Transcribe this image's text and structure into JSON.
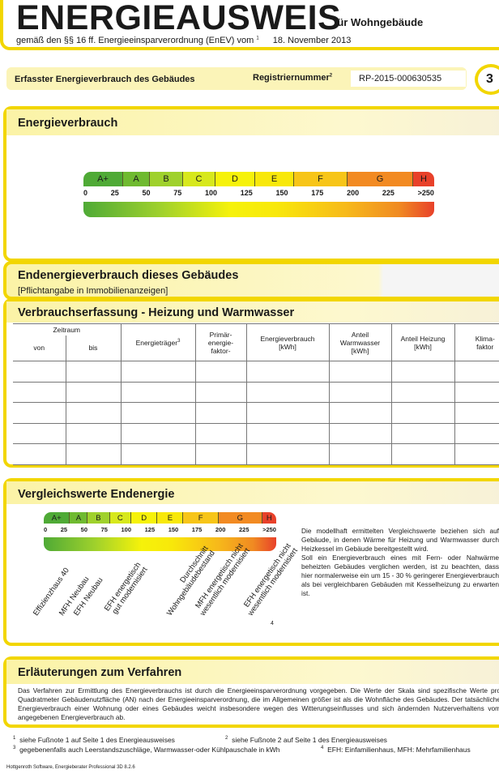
{
  "header": {
    "title": "ENERGIEAUSWEIS",
    "subtitle_right": "für Wohngebäude",
    "legal": "gemäß den §§ 16 ff. Energieeinsparverordnung (EnEV) vom",
    "legal_footnote": "1",
    "date": "18. November 2013"
  },
  "topbar": {
    "section": "Erfasster Energieverbrauch des Gebäudes",
    "reg_label": "Registriernummer",
    "reg_footnote": "2",
    "reg_value": "RP-2015-000630535",
    "page_number": "3"
  },
  "energy": {
    "title": "Energieverbrauch"
  },
  "scale": {
    "classes": [
      "A+",
      "A",
      "B",
      "C",
      "D",
      "E",
      "F",
      "G",
      "H"
    ],
    "ticks": [
      "0",
      "25",
      "50",
      "75",
      "100",
      "125",
      "150",
      "175",
      "200",
      "225",
      ">250"
    ],
    "colors": [
      "#4faa36",
      "#6fba30",
      "#9fd12c",
      "#d7e81c",
      "#f6f20a",
      "#f8e80a",
      "#f7c518",
      "#f28a22",
      "#e8412a"
    ]
  },
  "end": {
    "title": "Endenergieverbrauch dieses Gebäudes",
    "note": "[Pflichtangabe in Immobilienanzeigen]"
  },
  "consumption": {
    "title": "Verbrauchserfassung - Heizung und Warmwasser",
    "headers": {
      "period": "Zeitraum",
      "from": "von",
      "to": "bis",
      "carrier": "Energieträger",
      "carrier_fn": "3",
      "primary": "Primär-\nenergie-\nfaktor-",
      "usage": "Energieverbrauch\n[kWh]",
      "warm": "Anteil\nWarmwasser\n[kWh]",
      "heat": "Anteil Heizung\n[kWh]",
      "climate": "Klima-\nfaktor"
    },
    "rows": [
      [
        "",
        "",
        "",
        "",
        "",
        "",
        "",
        ""
      ],
      [
        "",
        "",
        "",
        "",
        "",
        "",
        "",
        ""
      ],
      [
        "",
        "",
        "",
        "",
        "",
        "",
        "",
        ""
      ],
      [
        "",
        "",
        "",
        "",
        "",
        "",
        "",
        ""
      ],
      [
        "",
        "",
        "",
        "",
        "",
        "",
        "",
        ""
      ]
    ]
  },
  "compare": {
    "title": "Vergleichswerte Endenergie",
    "labels": [
      "Effizienzhaus 40",
      "MFH Neubau",
      "EFH Neubau",
      "EFH energetisch\ngut modernisiert",
      "Durchschnitt\nWohngebäudebestand",
      "MFH energetisch nicht\nwesentlich modernisiert",
      "EFH energetisch nicht\nwesentlich modernisiert"
    ],
    "footnote_mark": "4",
    "text1": "Die modellhaft ermittelten Vergleichswerte beziehen sich auf Gebäude, in denen Wärme für Heizung und Warmwasser durch Heizkessel im Gebäude bereitgestellt wird.",
    "text2": "Soll ein Energieverbrauch eines mit Fern- oder Nahwärme beheizten Gebäudes verglichen werden, ist zu beachten, dass hier normalerweise ein um 15 - 30 % geringerer Energieverbrauch als bei vergleichbaren Gebäuden mit Kesselheizung zu erwarten ist."
  },
  "explain": {
    "title": "Erläuterungen zum Verfahren",
    "text": "Das Verfahren zur Ermittlung des Energieverbrauchs ist durch die Energieeinsparverordnung vorgegeben. Die Werte der Skala sind spezifische Werte pro Quadratmeter Gebäudenutzfläche (AN) nach der Energieeinsparverordnung, die im Allgemeinen größer ist als die Wohnfläche des Gebäudes. Der tatsächliche Energieverbrauch einer Wohnung oder eines Gebäudes weicht insbesondere wegen des Witterungseinflusses und sich ändernden Nutzerverhaltens vom angegebenen Energieverbrauch ab."
  },
  "footnotes": [
    {
      "n": "1",
      "t": "siehe Fußnote 1 auf Seite 1 des Energieausweises"
    },
    {
      "n": "2",
      "t": "siehe Fußnote 2 auf Seite 1 des Energieausweises"
    },
    {
      "n": "3",
      "t": "gegebenenfalls auch Leerstandszuschläge, Warmwasser-oder Kühlpauschale in kWh"
    },
    {
      "n": "4",
      "t": "EFH: Einfamilienhaus, MFH: Mehrfamilienhaus"
    }
  ],
  "software": "Hottgenroth Software, Energieberater Professional 3D 8.2.6"
}
